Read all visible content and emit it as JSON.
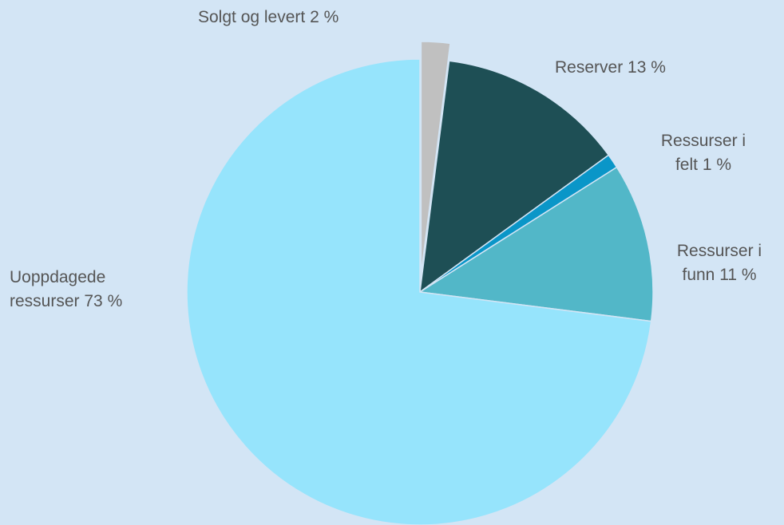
{
  "chart_data": {
    "type": "pie",
    "categories": [
      "Solgt og levert",
      "Reserver",
      "Ressurser i felt",
      "Ressurser i funn",
      "Uoppdagede ressurser"
    ],
    "values": [
      2,
      13,
      1,
      11,
      73
    ],
    "value_labels": [
      "2 %",
      "13 %",
      "1 %",
      "11 %",
      "73 %"
    ],
    "colors": [
      "#c0c0c0",
      "#1e4f55",
      "#0a96c8",
      "#52b7c8",
      "#96e4fc"
    ]
  }
}
